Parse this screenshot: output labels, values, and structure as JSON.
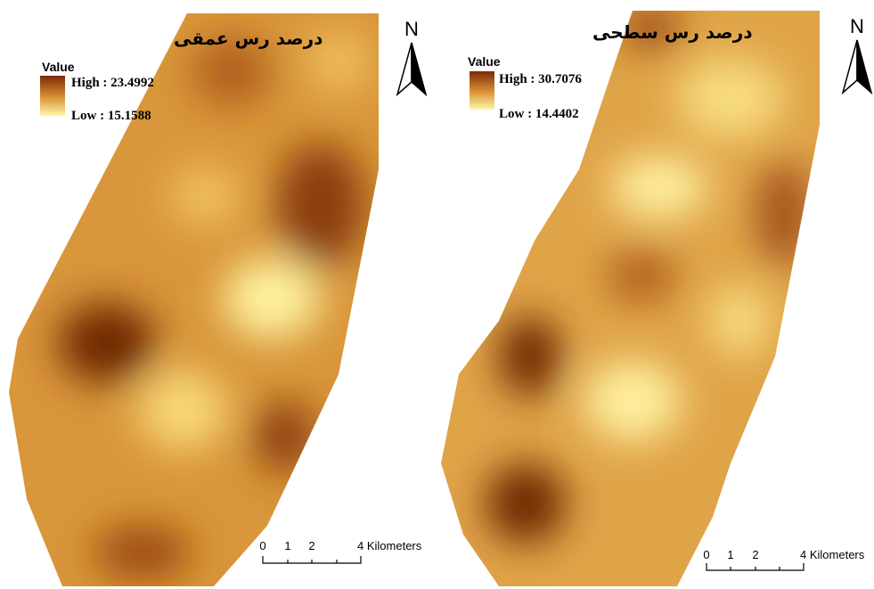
{
  "maps": [
    {
      "title": "درصد رس عمقی",
      "legend": {
        "heading": "Value",
        "high": "High : 23.4992",
        "low": "Low : 15.1588"
      },
      "north": "N",
      "scale": [
        "0",
        "1",
        "2",
        "4 Kilometers"
      ]
    },
    {
      "title": "درصد رس سطحی",
      "legend": {
        "heading": "Value",
        "high": "High : 30.7076",
        "low": "Low : 14.4402"
      },
      "north": "N",
      "scale": [
        "0",
        "1",
        "2",
        "4 Kilometers"
      ]
    }
  ]
}
